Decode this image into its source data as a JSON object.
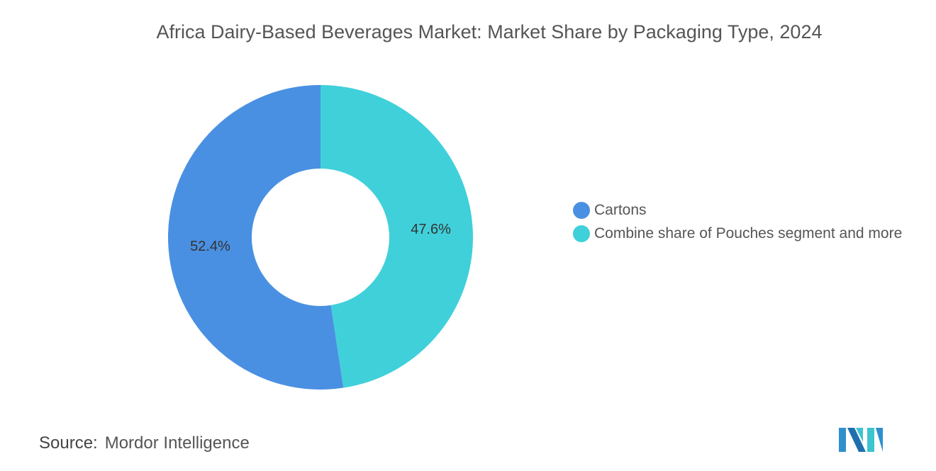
{
  "chart_data": {
    "type": "pie",
    "title": "Africa Dairy-Based Beverages Market: Market Share by Packaging Type, 2024",
    "categories": [
      "Cartons",
      "Combine share of Pouches segment and more"
    ],
    "values": [
      52.4,
      47.6
    ],
    "data_labels": [
      "52.4%",
      "47.6%"
    ],
    "colors": [
      "#4a90e2",
      "#40d0da"
    ],
    "donut": true,
    "legend_placement": "right"
  },
  "source": {
    "label": "Source:",
    "value": "Mordor Intelligence"
  },
  "logo": {
    "name": "mordor-intelligence-logo"
  }
}
